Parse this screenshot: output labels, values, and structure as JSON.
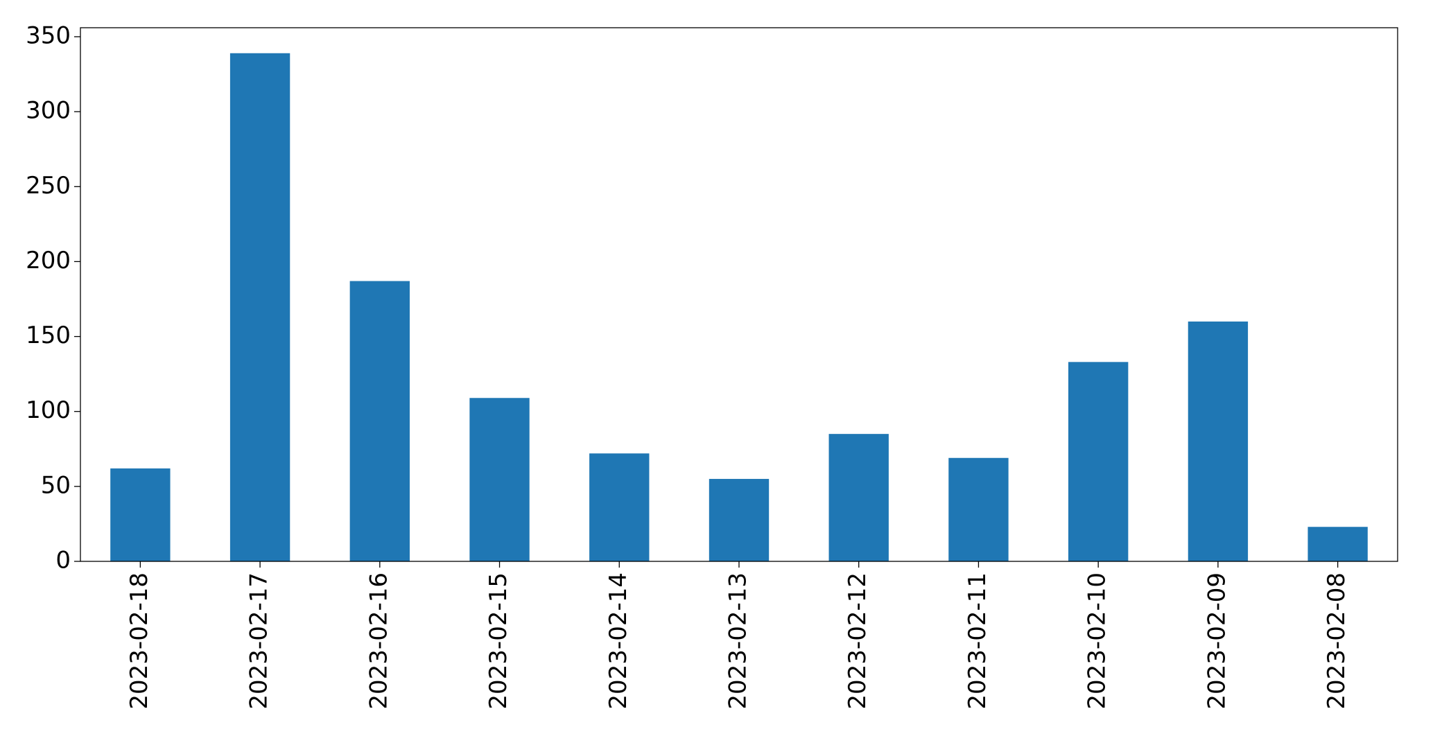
{
  "chart_data": {
    "type": "bar",
    "categories": [
      "2023-02-18",
      "2023-02-17",
      "2023-02-16",
      "2023-02-15",
      "2023-02-14",
      "2023-02-13",
      "2023-02-12",
      "2023-02-11",
      "2023-02-10",
      "2023-02-09",
      "2023-02-08"
    ],
    "values": [
      62,
      339,
      187,
      109,
      72,
      55,
      85,
      69,
      133,
      160,
      23
    ],
    "color": "#1f77b4",
    "ylim": [
      0,
      356
    ],
    "yticks": [
      0,
      50,
      100,
      150,
      200,
      250,
      300,
      350
    ],
    "grid": false
  }
}
